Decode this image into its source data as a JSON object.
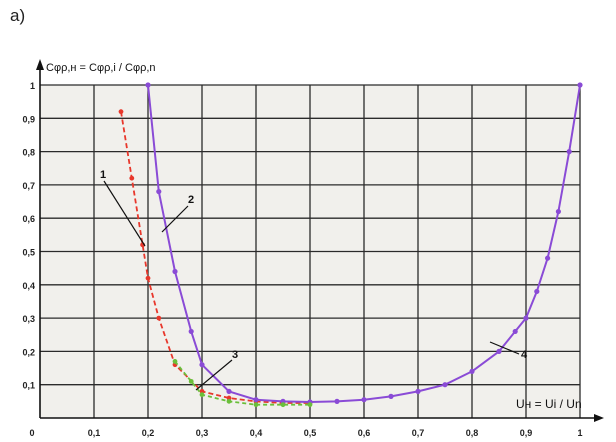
{
  "panel_label": "a)",
  "chart_data": {
    "type": "line",
    "ylabel": "Cφρ,н = Cφρ,i / Cφρ,n",
    "xlabel": "Uн = Ui / Un",
    "xlim": [
      0,
      1
    ],
    "ylim": [
      0,
      1
    ],
    "xticks": [
      "0",
      "0,1",
      "0,2",
      "0,3",
      "0,4",
      "0,5",
      "0,6",
      "0,7",
      "0,8",
      "0,9",
      "1"
    ],
    "yticks": [
      "0,1",
      "0,2",
      "0,3",
      "0,4",
      "0,5",
      "0,6",
      "0,7",
      "0,8",
      "0,9",
      "1"
    ],
    "grid": true,
    "annotations": [
      "1",
      "2",
      "3",
      "4"
    ],
    "series": [
      {
        "color": "#e8372b",
        "x": [
          0.15,
          0.17,
          0.19,
          0.2,
          0.22,
          0.25,
          0.3,
          0.35,
          0.4,
          0.45,
          0.5
        ],
        "y": [
          0.92,
          0.72,
          0.52,
          0.42,
          0.3,
          0.16,
          0.08,
          0.06,
          0.05,
          0.045,
          0.045
        ]
      },
      {
        "color": "#8a4bd6",
        "x": [
          0.2,
          0.22,
          0.25,
          0.28,
          0.3,
          0.35,
          0.4,
          0.45,
          0.5,
          0.55,
          0.6,
          0.65,
          0.7,
          0.75,
          0.8,
          0.85,
          0.88,
          0.9,
          0.92,
          0.94,
          0.96,
          0.98,
          1.0
        ],
        "y": [
          1.0,
          0.68,
          0.44,
          0.26,
          0.16,
          0.08,
          0.055,
          0.05,
          0.048,
          0.05,
          0.055,
          0.065,
          0.08,
          0.1,
          0.14,
          0.2,
          0.26,
          0.3,
          0.38,
          0.48,
          0.62,
          0.8,
          1.0
        ]
      },
      {
        "color": "#6abf3a",
        "x": [
          0.25,
          0.28,
          0.3,
          0.35,
          0.4,
          0.45,
          0.5
        ],
        "y": [
          0.17,
          0.11,
          0.07,
          0.05,
          0.04,
          0.04,
          0.04
        ]
      }
    ]
  }
}
